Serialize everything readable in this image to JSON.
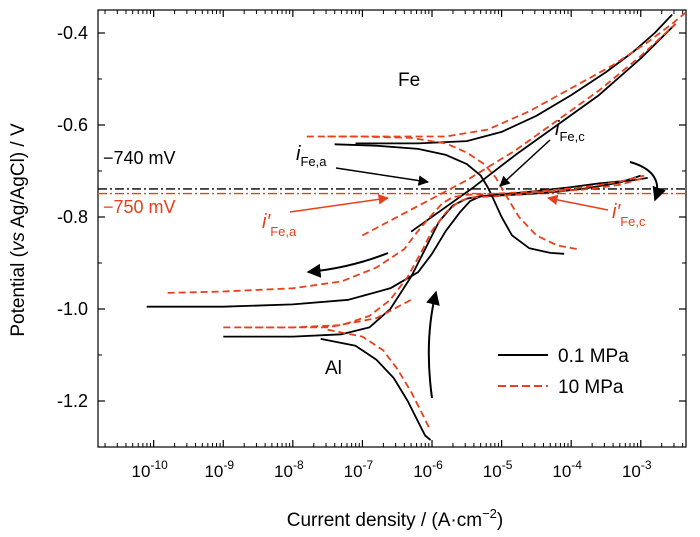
{
  "chart_data": {
    "type": "line",
    "xlabel": "Current density / (A·cm",
    "xlabel_sup": "−2",
    "xlabel_end": ")",
    "ylabel_pre": "Potential (",
    "ylabel_italic": "vs",
    "ylabel_post": " Ag/AgCl) / V",
    "xscale": "log",
    "xlim_exp": [
      -10.8,
      -2.35
    ],
    "ylim": [
      -1.3,
      -0.35
    ],
    "x_ticks": [
      {
        "exp": -10,
        "label": "10",
        "sup": "-10"
      },
      {
        "exp": -9,
        "label": "10",
        "sup": "-9"
      },
      {
        "exp": -8,
        "label": "10",
        "sup": "-8"
      },
      {
        "exp": -7,
        "label": "10",
        "sup": "-7"
      },
      {
        "exp": -6,
        "label": "10",
        "sup": "-6"
      },
      {
        "exp": -5,
        "label": "10",
        "sup": "-5"
      },
      {
        "exp": -4,
        "label": "10",
        "sup": "-4"
      },
      {
        "exp": -3,
        "label": "10",
        "sup": "-3"
      }
    ],
    "y_ticks": [
      {
        "value": -0.4,
        "label": "-0.4"
      },
      {
        "value": -0.6,
        "label": "-0.6"
      },
      {
        "value": -0.8,
        "label": "-0.8"
      },
      {
        "value": -1.0,
        "label": "-1.0"
      },
      {
        "value": -1.2,
        "label": "-1.2"
      }
    ],
    "legend_position": "bottom-right",
    "series": [
      {
        "name": "0.1 MPa",
        "color": "#000000",
        "dash": "solid"
      },
      {
        "name": "10 MPa",
        "color": "#e8401c",
        "dash": "dashed"
      }
    ],
    "curves": [
      {
        "series": 0,
        "log_x": [
          -10.1,
          -9.0,
          -8.0,
          -7.2,
          -6.6,
          -6.2,
          -6.0,
          -5.8,
          -5.6,
          -5.45,
          -5.3,
          -5.1,
          -4.8,
          -4.4,
          -4.0,
          -3.6,
          -3.1,
          -2.9
        ],
        "y": [
          -0.995,
          -0.995,
          -0.99,
          -0.98,
          -0.955,
          -0.92,
          -0.88,
          -0.83,
          -0.79,
          -0.765,
          -0.755,
          -0.752,
          -0.748,
          -0.742,
          -0.735,
          -0.727,
          -0.72,
          -0.715
        ]
      },
      {
        "series": 0,
        "log_x": [
          -9.0,
          -8.0,
          -7.3,
          -6.9,
          -6.6,
          -6.3,
          -6.1,
          -5.9,
          -5.7,
          -5.5,
          -5.3,
          -5.0,
          -4.6,
          -4.2,
          -3.8,
          -3.3,
          -3.0
        ],
        "y": [
          -1.06,
          -1.06,
          -1.055,
          -1.04,
          -1.0,
          -0.93,
          -0.87,
          -0.81,
          -0.775,
          -0.76,
          -0.755,
          -0.753,
          -0.75,
          -0.745,
          -0.738,
          -0.725,
          -0.71
        ]
      },
      {
        "series": 0,
        "log_x": [
          -7.6,
          -7.1,
          -6.8,
          -6.55,
          -6.35,
          -6.2,
          -6.1,
          -6.02
        ],
        "y": [
          -1.065,
          -1.08,
          -1.11,
          -1.15,
          -1.2,
          -1.245,
          -1.275,
          -1.285
        ]
      },
      {
        "series": 0,
        "log_x": [
          -7.4,
          -6.8,
          -6.2,
          -5.8,
          -5.5,
          -5.3,
          -5.2,
          -5.12,
          -5.0,
          -4.85,
          -4.6,
          -4.3,
          -4.1
        ],
        "y": [
          -0.642,
          -0.645,
          -0.652,
          -0.665,
          -0.685,
          -0.71,
          -0.735,
          -0.76,
          -0.8,
          -0.84,
          -0.868,
          -0.878,
          -0.88
        ]
      },
      {
        "series": 0,
        "log_x": [
          -6.3,
          -5.4,
          -4.8,
          -4.2,
          -3.6,
          -3.0,
          -2.5
        ],
        "y": [
          -0.832,
          -0.735,
          -0.665,
          -0.6,
          -0.535,
          -0.455,
          -0.38
        ]
      },
      {
        "series": 0,
        "log_x": [
          -7.1,
          -6.2,
          -5.5,
          -5.0,
          -4.5,
          -4.0,
          -3.5,
          -3.1,
          -2.8,
          -2.55
        ],
        "y": [
          -0.64,
          -0.64,
          -0.635,
          -0.615,
          -0.58,
          -0.535,
          -0.485,
          -0.44,
          -0.4,
          -0.36
        ]
      },
      {
        "series": 1,
        "log_x": [
          -9.8,
          -9.0,
          -8.0,
          -7.3,
          -6.8,
          -6.4,
          -6.2,
          -6.0,
          -5.85,
          -5.7,
          -5.5,
          -5.2,
          -4.8,
          -4.3,
          -3.8,
          -3.3,
          -2.95
        ],
        "y": [
          -0.965,
          -0.962,
          -0.955,
          -0.94,
          -0.91,
          -0.87,
          -0.83,
          -0.795,
          -0.77,
          -0.757,
          -0.752,
          -0.75,
          -0.747,
          -0.742,
          -0.735,
          -0.723,
          -0.71
        ]
      },
      {
        "series": 1,
        "log_x": [
          -9.0,
          -8.0,
          -7.3,
          -6.9,
          -6.6,
          -6.35,
          -6.15,
          -6.0,
          -5.8,
          -5.6,
          -5.4,
          -5.1,
          -4.7,
          -4.3,
          -3.8,
          -3.3,
          -2.95
        ],
        "y": [
          -1.04,
          -1.04,
          -1.035,
          -1.015,
          -0.98,
          -0.93,
          -0.875,
          -0.83,
          -0.79,
          -0.765,
          -0.757,
          -0.755,
          -0.75,
          -0.745,
          -0.74,
          -0.73,
          -0.715
        ]
      },
      {
        "series": 1,
        "log_x": [
          -7.5,
          -7.0,
          -6.7,
          -6.5,
          -6.3,
          -6.15,
          -6.02
        ],
        "y": [
          -1.045,
          -1.06,
          -1.09,
          -1.13,
          -1.18,
          -1.225,
          -1.265
        ]
      },
      {
        "series": 1,
        "log_x": [
          -7.8,
          -7.0,
          -6.3,
          -5.8,
          -5.5,
          -5.25,
          -5.08,
          -4.95,
          -4.75,
          -4.5,
          -4.2,
          -3.9
        ],
        "y": [
          -0.625,
          -0.625,
          -0.628,
          -0.64,
          -0.66,
          -0.685,
          -0.715,
          -0.75,
          -0.8,
          -0.84,
          -0.862,
          -0.87
        ]
      },
      {
        "series": 1,
        "log_x": [
          -8.7,
          -7.5,
          -6.8,
          -6.3
        ],
        "y": [
          -1.04,
          -1.04,
          -1.02,
          -0.98
        ]
      },
      {
        "series": 1,
        "log_x": [
          -7.5,
          -6.5,
          -5.8,
          -5.2,
          -4.6,
          -4.0,
          -3.4,
          -2.9,
          -2.55,
          -2.35
        ],
        "y": [
          -0.625,
          -0.625,
          -0.625,
          -0.61,
          -0.57,
          -0.52,
          -0.47,
          -0.42,
          -0.38,
          -0.355
        ]
      },
      {
        "series": 1,
        "log_x": [
          -7.0,
          -5.5,
          -4.8,
          -4.2,
          -3.6,
          -3.0,
          -2.5
        ],
        "y": [
          -0.84,
          -0.72,
          -0.655,
          -0.59,
          -0.525,
          -0.45,
          -0.38
        ]
      }
    ],
    "reference_lines": [
      {
        "y": -0.739,
        "color": "#000000",
        "label": "−740 mV"
      },
      {
        "y": -0.749,
        "color": "#e8401c",
        "label": "−750 mV"
      }
    ],
    "annotations": {
      "fe_label": "Fe",
      "al_label": "Al",
      "i_fe_a": {
        "main": "i",
        "sub": "Fe,a"
      },
      "i_fe_c": {
        "main": "i",
        "sub": "Fe,c"
      },
      "i_prime_fe_a": {
        "main": "i′",
        "sub": "Fe,a"
      },
      "i_prime_fe_c": {
        "main": "i′",
        "sub": "Fe,c"
      }
    },
    "colors": {
      "black": "#000000",
      "red": "#e8401c"
    }
  }
}
